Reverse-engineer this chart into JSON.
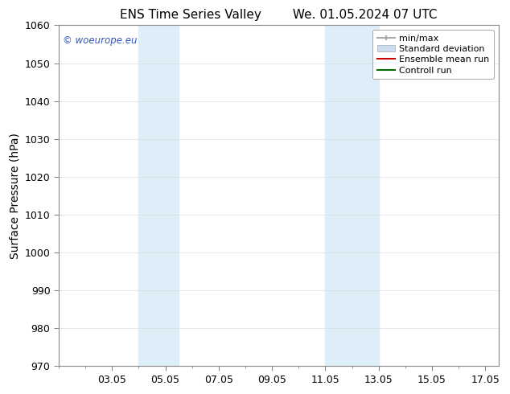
{
  "title_left": "ENS Time Series Valley",
  "title_right": "We. 01.05.2024 07 UTC",
  "ylabel": "Surface Pressure (hPa)",
  "ylim": [
    970,
    1060
  ],
  "yticks": [
    970,
    980,
    990,
    1000,
    1010,
    1020,
    1030,
    1040,
    1050,
    1060
  ],
  "xlim": [
    1.0,
    17.5
  ],
  "xtick_labels": [
    "03.05",
    "05.05",
    "07.05",
    "09.05",
    "11.05",
    "13.05",
    "15.05",
    "17.05"
  ],
  "xtick_positions": [
    3,
    5,
    7,
    9,
    11,
    13,
    15,
    17
  ],
  "shaded_bands": [
    {
      "x_start": 4.0,
      "x_end": 5.5,
      "color": "#deeef8"
    },
    {
      "x_start": 11.0,
      "x_end": 13.0,
      "color": "#deeef8"
    }
  ],
  "watermark_text": "© woeurope.eu",
  "watermark_color": "#3355bb",
  "background_color": "#ffffff",
  "legend_items": [
    {
      "label": "min/max",
      "color": "#aaaaaa",
      "type": "line_with_caps"
    },
    {
      "label": "Standard deviation",
      "color": "#ccddef",
      "type": "patch"
    },
    {
      "label": "Ensemble mean run",
      "color": "#cc0000",
      "type": "line"
    },
    {
      "label": "Controll run",
      "color": "#006600",
      "type": "line"
    }
  ],
  "title_fontsize": 11,
  "axis_label_fontsize": 10,
  "tick_fontsize": 9,
  "legend_fontsize": 8,
  "fig_bg_color": "#ffffff"
}
